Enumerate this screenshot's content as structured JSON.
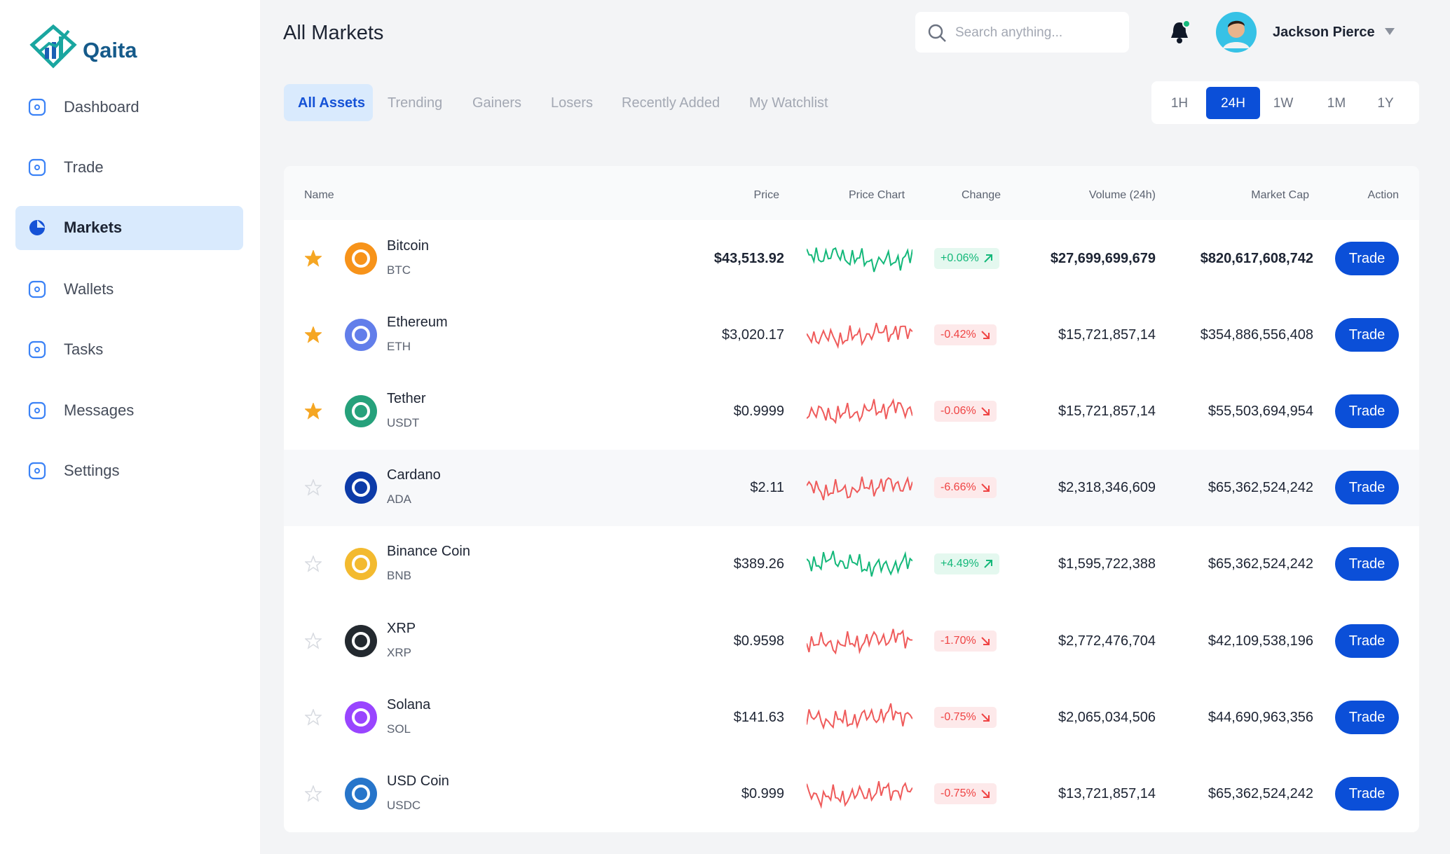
{
  "sidebar": {
    "brand": "Qaita",
    "nav": [
      {
        "label": "Dashboard",
        "active": false
      },
      {
        "label": "Trade",
        "active": false
      },
      {
        "label": "Markets",
        "active": true
      },
      {
        "label": "Wallets",
        "active": false
      },
      {
        "label": "Tasks",
        "active": false
      },
      {
        "label": "Messages",
        "active": false
      },
      {
        "label": "Settings",
        "active": false
      }
    ]
  },
  "header": {
    "title": "All Markets",
    "search_placeholder": "Search anything...",
    "user_name": "Jackson Pierce"
  },
  "filters": {
    "tabs": [
      {
        "label": "All Assets",
        "active": true
      },
      {
        "label": "Trending",
        "active": false
      },
      {
        "label": "Gainers",
        "active": false
      },
      {
        "label": "Losers",
        "active": false
      },
      {
        "label": "Recently Added",
        "active": false
      },
      {
        "label": "My Watchlist",
        "active": false
      }
    ],
    "ranges": [
      {
        "label": "1H",
        "active": false
      },
      {
        "label": "24H",
        "active": true
      },
      {
        "label": "1W",
        "active": false
      },
      {
        "label": "1M",
        "active": false
      },
      {
        "label": "1Y",
        "active": false
      }
    ]
  },
  "table": {
    "columns": [
      "Name",
      "Price",
      "Price Chart",
      "Change",
      "Volume (24h)",
      "Market Cap",
      "Action"
    ],
    "rows": [
      {
        "name": "Bitcoin",
        "symbol": "BTC",
        "price": "$43,513.92",
        "change": "+0.06%",
        "volume": "$27,699,699,679",
        "market_cap": "$820,617,608,742",
        "action": "Trade",
        "starred": true,
        "icon_color": "#f7931a"
      },
      {
        "name": "Ethereum",
        "symbol": "ETH",
        "price": "$3,020.17",
        "change": "-0.42%",
        "volume": "$15,721,857,14",
        "market_cap": "$354,886,556,408",
        "action": "Trade",
        "starred": true,
        "icon_color": "#627eea"
      },
      {
        "name": "Tether",
        "symbol": "USDT",
        "price": "$0.9999",
        "change": "-0.06%",
        "volume": "$15,721,857,14",
        "market_cap": "$55,503,694,954",
        "action": "Trade",
        "starred": true,
        "icon_color": "#26a17b"
      },
      {
        "name": "Cardano",
        "symbol": "ADA",
        "price": "$2.11",
        "change": "-6.66%",
        "volume": "$2,318,346,609",
        "market_cap": "$65,362,524,242",
        "action": "Trade",
        "starred": false,
        "icon_color": "#0d3ba8"
      },
      {
        "name": "Binance Coin",
        "symbol": "BNB",
        "price": "$389.26",
        "change": "+4.49%",
        "volume": "$1,595,722,388",
        "market_cap": "$65,362,524,242",
        "action": "Trade",
        "starred": false,
        "icon_color": "#f3ba2f"
      },
      {
        "name": "XRP",
        "symbol": "XRP",
        "price": "$0.9598",
        "change": "-1.70%",
        "volume": "$2,772,476,704",
        "market_cap": "$42,109,538,196",
        "action": "Trade",
        "starred": false,
        "icon_color": "#23292f"
      },
      {
        "name": "Solana",
        "symbol": "SOL",
        "price": "$141.63",
        "change": "-0.75%",
        "volume": "$2,065,034,506",
        "market_cap": "$44,690,963,356",
        "action": "Trade",
        "starred": false,
        "icon_color": "#9945ff"
      },
      {
        "name": "USD Coin",
        "symbol": "USDC",
        "price": "$0.999",
        "change": "-0.75%",
        "volume": "$13,721,857,14",
        "market_cap": "$65,362,524,242",
        "action": "Trade",
        "starred": false,
        "icon_color": "#2775ca"
      }
    ]
  }
}
